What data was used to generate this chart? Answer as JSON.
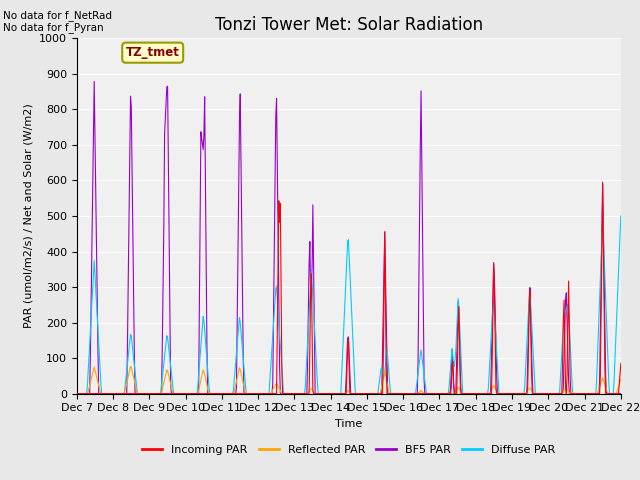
{
  "title": "Tonzi Tower Met: Solar Radiation",
  "ylabel": "PAR (umol/m2/s) / Net and Solar (W/m2)",
  "xlabel": "Time",
  "ylim": [
    0,
    1000
  ],
  "yticks": [
    0,
    100,
    200,
    300,
    400,
    500,
    600,
    700,
    800,
    900,
    1000
  ],
  "xtick_labels": [
    "Dec 7",
    "Dec 8",
    "Dec 9",
    "Dec 10",
    "Dec 11",
    "Dec 12",
    "Dec 13",
    "Dec 14",
    "Dec 15",
    "Dec 16",
    "Dec 17",
    "Dec 18",
    "Dec 19",
    "Dec 20",
    "Dec 21",
    "Dec 22"
  ],
  "annotation_text": "No data for f_NetRad\nNo data for f_Pyran",
  "legend_label": "TZ_tmet",
  "legend_entries": [
    "Incoming PAR",
    "Reflected PAR",
    "BF5 PAR",
    "Diffuse PAR"
  ],
  "legend_colors": [
    "#ff0000",
    "#ffa500",
    "#9900cc",
    "#00ccff"
  ],
  "bg_color": "#e8e8e8",
  "plot_bg_color": "#f0f0f0",
  "grid_color": "#ffffff",
  "title_fontsize": 12,
  "label_fontsize": 8,
  "tick_fontsize": 8
}
